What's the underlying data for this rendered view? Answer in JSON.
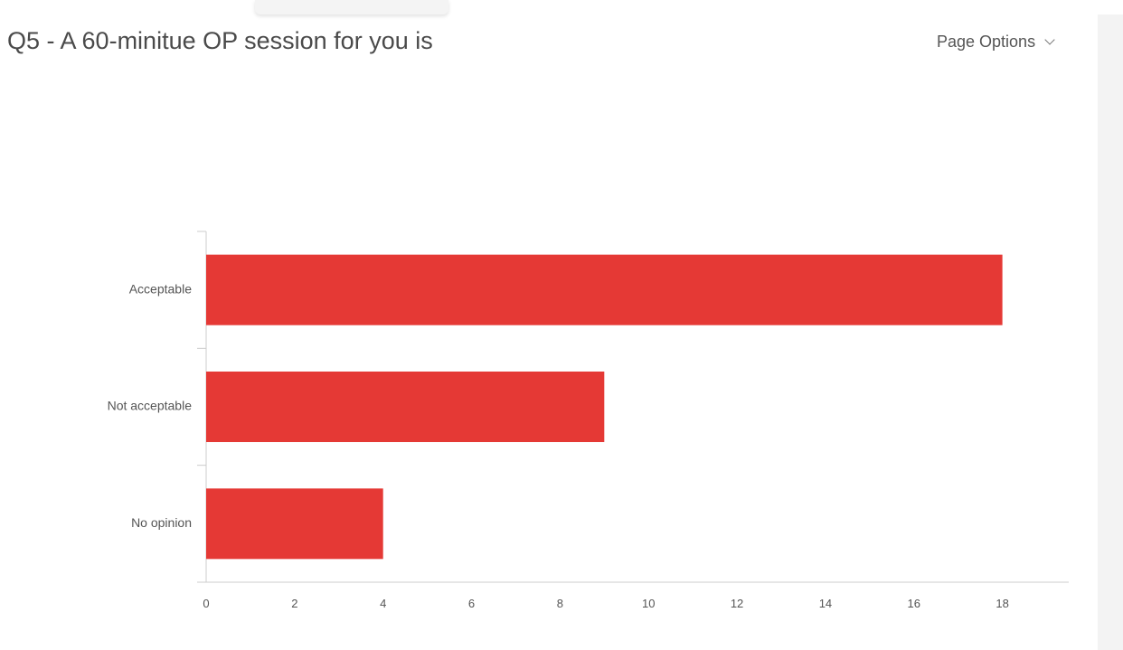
{
  "header": {
    "title": "Q5 - A 60-minitue OP session for you is",
    "page_options_label": "Page Options",
    "page_options_icon": "chevron-down-icon"
  },
  "chart_data": {
    "type": "bar",
    "orientation": "horizontal",
    "categories": [
      "Acceptable",
      "Not acceptable",
      "No opinion"
    ],
    "values": [
      18,
      9,
      4
    ],
    "xlim": [
      0,
      19.5
    ],
    "xticks": [
      0,
      2,
      4,
      6,
      8,
      10,
      12,
      14,
      16,
      18
    ],
    "grid": false,
    "bar_color": "#e53935"
  }
}
